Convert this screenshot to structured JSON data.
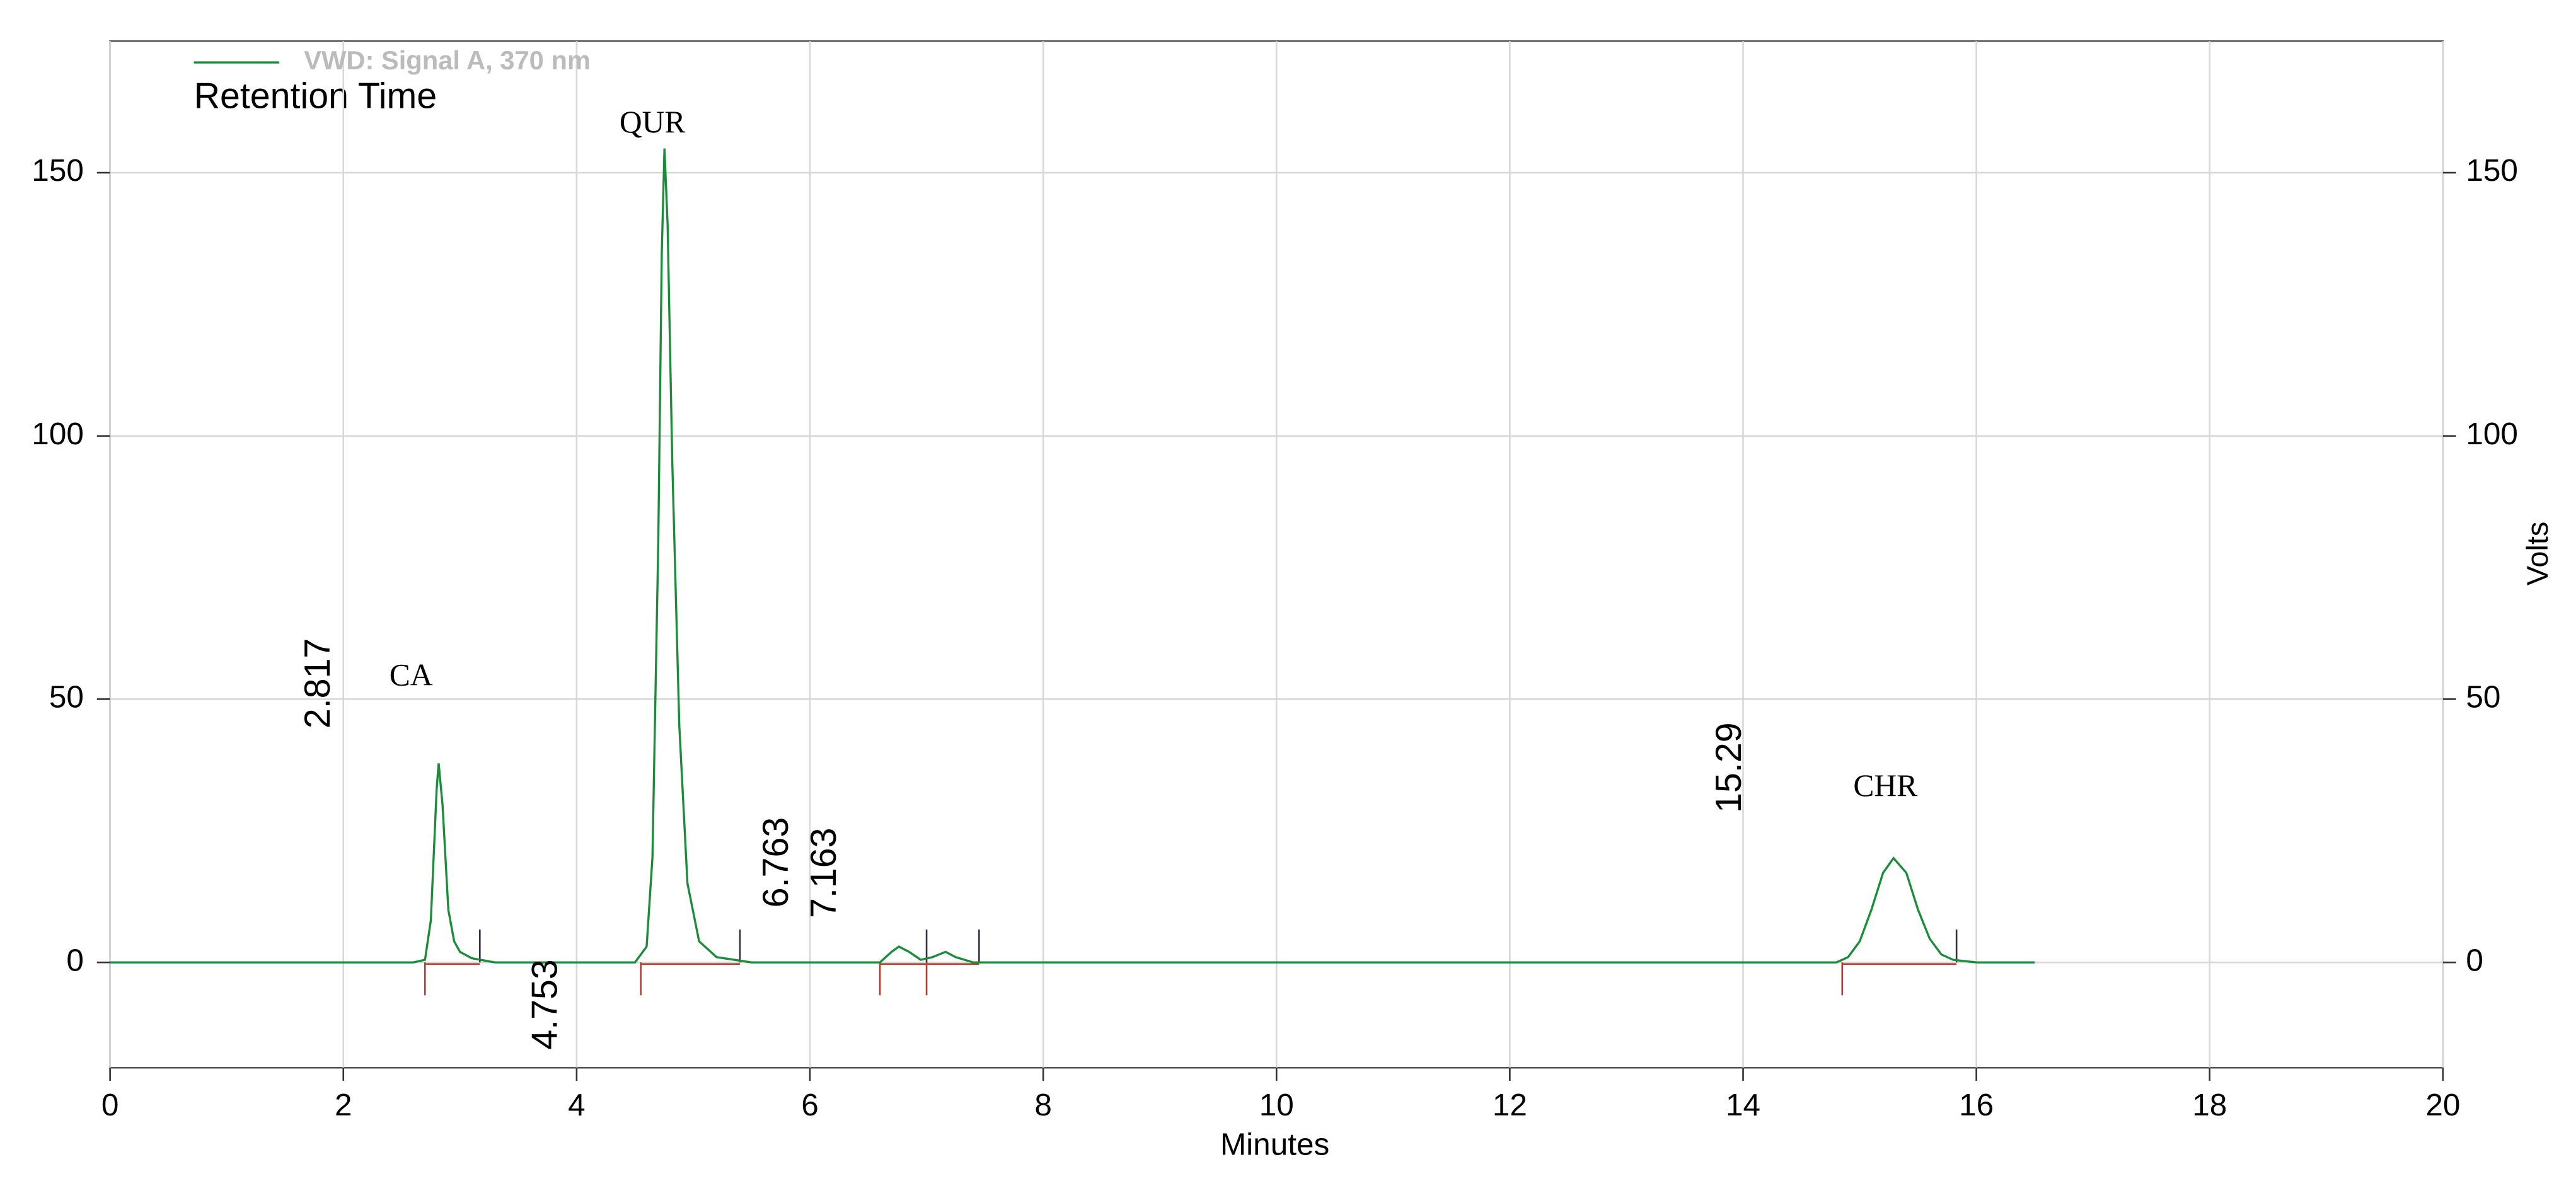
{
  "chart_data": {
    "type": "line",
    "legend_title": "Retention Time",
    "xlabel": "Minutes",
    "y2label": "Volts",
    "xlim": [
      0,
      20
    ],
    "xticks": [
      0,
      2,
      4,
      6,
      8,
      10,
      12,
      14,
      16,
      18,
      20
    ],
    "ylim": [
      -20,
      175
    ],
    "yticks": [
      0,
      50,
      100,
      150
    ],
    "y2lim": [
      -20,
      175
    ],
    "y2ticks": [
      0,
      50,
      100,
      150
    ],
    "grid": true,
    "legend": "upper left",
    "series": [
      {
        "name": "VWD: Signal A, 370 nm",
        "color": "#1a8c3a",
        "x": [
          0,
          2.6,
          2.7,
          2.75,
          2.8,
          2.817,
          2.85,
          2.9,
          2.95,
          3.0,
          3.1,
          3.3,
          4.5,
          4.6,
          4.65,
          4.7,
          4.73,
          4.753,
          4.78,
          4.82,
          4.88,
          4.95,
          5.05,
          5.2,
          5.5,
          6.6,
          6.7,
          6.763,
          6.85,
          6.95,
          7.05,
          7.163,
          7.25,
          7.4,
          14.8,
          14.9,
          15.0,
          15.1,
          15.2,
          15.29,
          15.4,
          15.5,
          15.6,
          15.7,
          15.8,
          16.0,
          16.5
        ],
        "values": [
          0,
          0,
          0.5,
          8,
          33,
          37.8,
          30,
          10,
          4,
          2,
          0.8,
          0,
          0,
          3,
          20,
          80,
          135,
          154.6,
          140,
          95,
          45,
          15,
          4,
          1,
          0,
          0,
          2,
          3,
          2,
          0.5,
          1,
          2,
          1,
          0,
          0,
          1,
          4,
          10,
          17,
          19.8,
          17,
          10,
          4.5,
          1.5,
          0.5,
          0,
          0
        ]
      }
    ],
    "integration_marks": {
      "start": [
        2.7,
        4.55,
        6.6,
        7.0,
        14.85
      ],
      "end": [
        3.17,
        5.4,
        7.0,
        7.45,
        15.83
      ]
    },
    "retention_labels": [
      {
        "value": 2.817,
        "x": 1.8,
        "y": 53
      },
      {
        "value": 4.753,
        "x": 3.75,
        "y": -8
      },
      {
        "value": 6.763,
        "x": 5.73,
        "y": 19
      },
      {
        "value": 7.163,
        "x": 6.14,
        "y": 17
      },
      {
        "value": 15.29,
        "x": 13.9,
        "y": 37
      }
    ],
    "peak_names": [
      {
        "text": "CA",
        "x": 2.58,
        "y": 54
      },
      {
        "text": "QUR",
        "x": 4.65,
        "y": 159
      },
      {
        "text": "CHR",
        "x": 15.22,
        "y": 33
      }
    ]
  }
}
